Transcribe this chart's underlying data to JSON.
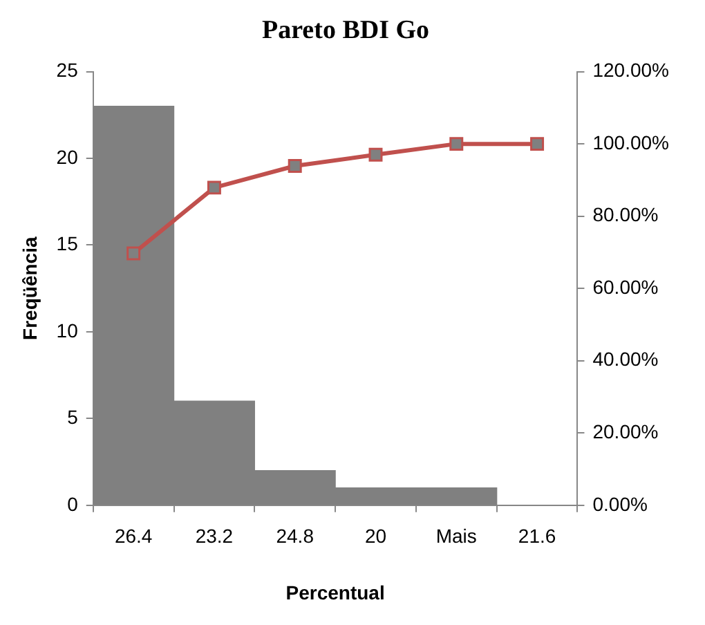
{
  "chart_data": {
    "type": "bar",
    "title": "Pareto BDI Go",
    "xlabel": "Percentual",
    "ylabel": "Freqüência",
    "categories": [
      "26.4",
      "23.2",
      "24.8",
      "20",
      "Mais",
      "21.6"
    ],
    "series": [
      {
        "color": "#808080",
        "values": [
          23,
          6,
          2,
          1,
          1,
          0
        ]
      },
      {
        "type": "line",
        "axis": "y2",
        "color": "#c0504d",
        "values": [
          69.7,
          87.9,
          93.9,
          97.0,
          100,
          100
        ]
      }
    ],
    "ylim": [
      0,
      25
    ],
    "yticks": [
      0,
      5,
      10,
      15,
      20,
      25
    ],
    "y2lim": [
      0,
      120
    ],
    "y2ticks": [
      {
        "value": 0,
        "label": "0.00%"
      },
      {
        "value": 20,
        "label": "20.00%"
      },
      {
        "value": 40,
        "label": "40.00%"
      },
      {
        "value": 60,
        "label": "60.00%"
      },
      {
        "value": 80,
        "label": "80.00%"
      },
      {
        "value": 100,
        "label": "100.00%"
      },
      {
        "value": 120,
        "label": "120.00%"
      }
    ],
    "marker": "square",
    "grid": false,
    "legend": false
  }
}
